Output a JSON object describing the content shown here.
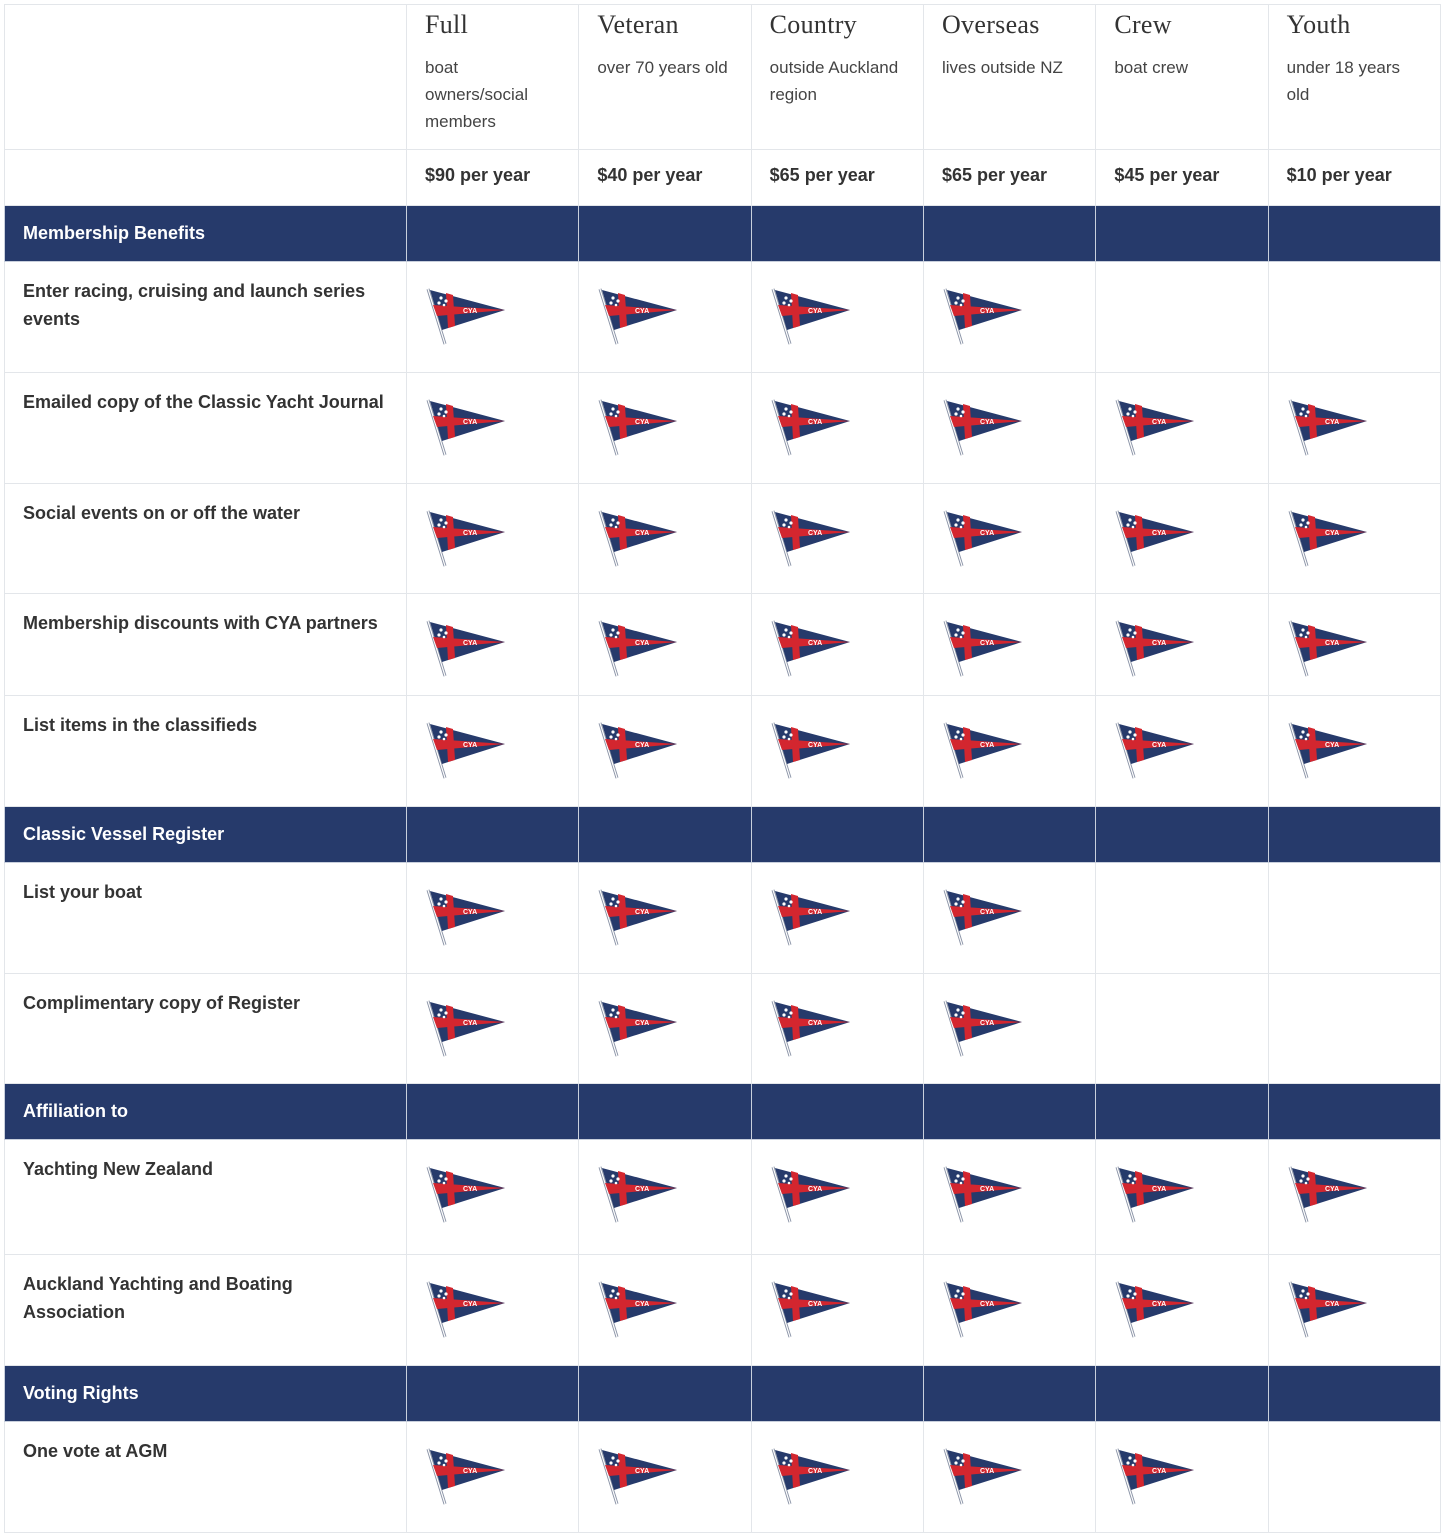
{
  "colors": {
    "section_bg": "#263a6b",
    "flag_navy": "#263a6b",
    "flag_red": "#d3262f"
  },
  "icon": "cya-burgee-flag-icon",
  "flag_text": "CYA",
  "tiers": [
    {
      "name": "Full",
      "desc": "boat owners/social members",
      "price": "$90 per year"
    },
    {
      "name": "Veteran",
      "desc": "over 70 years old",
      "price": "$40 per year"
    },
    {
      "name": "Country",
      "desc": "outside Auckland region",
      "price": "$65 per year"
    },
    {
      "name": "Overseas",
      "desc": "lives outside NZ",
      "price": "$65 per year"
    },
    {
      "name": "Crew",
      "desc": "boat crew",
      "price": "$45 per year"
    },
    {
      "name": "Youth",
      "desc": "under 18 years old",
      "price": "$10 per year"
    }
  ],
  "sections": [
    {
      "title": "Membership Benefits",
      "rows": [
        {
          "label": "Enter racing, cruising and launch series events",
          "included": [
            true,
            true,
            true,
            true,
            false,
            false
          ],
          "h": 111
        },
        {
          "label": "Emailed copy of the Classic Yacht Journal",
          "included": [
            true,
            true,
            true,
            true,
            true,
            true
          ],
          "h": 111
        },
        {
          "label": "Social events on or off the water",
          "included": [
            true,
            true,
            true,
            true,
            true,
            true
          ],
          "h": 110
        },
        {
          "label": "Membership discounts with CYA partners",
          "included": [
            true,
            true,
            true,
            true,
            true,
            true
          ],
          "h": 102
        },
        {
          "label": "List items in the classifieds",
          "included": [
            true,
            true,
            true,
            true,
            true,
            true
          ],
          "h": 111
        }
      ]
    },
    {
      "title": "Classic Vessel Register",
      "rows": [
        {
          "label": "List your boat",
          "included": [
            true,
            true,
            true,
            true,
            false,
            false
          ],
          "h": 111
        },
        {
          "label": "Complimentary copy of Register",
          "included": [
            true,
            true,
            true,
            true,
            false,
            false
          ],
          "h": 110
        }
      ]
    },
    {
      "title": "Affiliation to",
      "rows": [
        {
          "label": "Yachting New Zealand",
          "included": [
            true,
            true,
            true,
            true,
            true,
            true
          ],
          "h": 115
        },
        {
          "label": "Auckland Yachting and Boating Association",
          "included": [
            true,
            true,
            true,
            true,
            true,
            true
          ],
          "h": 111
        }
      ]
    },
    {
      "title": "Voting Rights",
      "rows": [
        {
          "label": "One vote at AGM",
          "included": [
            true,
            true,
            true,
            true,
            true,
            false
          ],
          "h": 111
        }
      ]
    }
  ]
}
